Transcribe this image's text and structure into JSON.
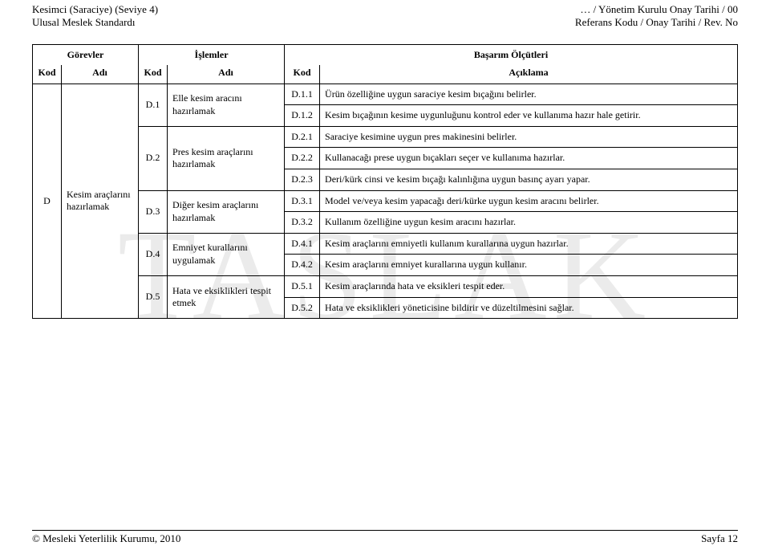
{
  "header": {
    "left_line1": "Kesimci (Saraciye) (Seviye 4)",
    "left_line2": "Ulusal Meslek Standardı",
    "right_line1": "… / Yönetim Kurulu Onay Tarihi  / 00",
    "right_line2": "Referans Kodu / Onay Tarihi / Rev. No"
  },
  "watermark": "TASLAK",
  "columns": {
    "gorevler": "Görevler",
    "islemler": "İşlemler",
    "basarim": "Başarım Ölçütleri",
    "kod": "Kod",
    "adi": "Adı",
    "aciklama": "Açıklama"
  },
  "task": {
    "kod": "D",
    "adi": "Kesim araçlarını hazırlamak"
  },
  "ops": [
    {
      "kod": "D.1",
      "adi": "Elle kesim aracını hazırlamak"
    },
    {
      "kod": "D.2",
      "adi": "Pres kesim araçlarını hazırlamak"
    },
    {
      "kod": "D.3",
      "adi": "Diğer kesim araçlarını hazırlamak"
    },
    {
      "kod": "D.4",
      "adi": "Emniyet kurallarını uygulamak"
    },
    {
      "kod": "D.5",
      "adi": "Hata ve eksiklikleri tespit etmek"
    }
  ],
  "crit": {
    "d11": {
      "k": "D.1.1",
      "t": "Ürün özelliğine uygun saraciye kesim bıçağını belirler."
    },
    "d12": {
      "k": "D.1.2",
      "t": "Kesim bıçağının kesime uygunluğunu kontrol eder ve kullanıma hazır hale getirir."
    },
    "d21": {
      "k": "D.2.1",
      "t": "Saraciye kesimine uygun pres makinesini belirler."
    },
    "d22": {
      "k": "D.2.2",
      "t": "Kullanacağı prese uygun bıçakları seçer ve kullanıma hazırlar."
    },
    "d23": {
      "k": "D.2.3",
      "t": "Deri/kürk cinsi ve kesim bıçağı kalınlığına uygun basınç ayarı yapar."
    },
    "d31": {
      "k": "D.3.1",
      "t": "Model ve/veya kesim yapacağı deri/kürke uygun kesim aracını belirler."
    },
    "d32": {
      "k": "D.3.2",
      "t": "Kullanım özelliğine uygun kesim aracını hazırlar."
    },
    "d41": {
      "k": "D.4.1",
      "t": "Kesim araçlarını emniyetli kullanım kurallarına uygun hazırlar."
    },
    "d42": {
      "k": "D.4.2",
      "t": "Kesim araçlarını emniyet kurallarına uygun kullanır."
    },
    "d51": {
      "k": "D.5.1",
      "t": "Kesim araçlarında hata ve eksikleri tespit eder."
    },
    "d52": {
      "k": "D.5.2",
      "t": "Hata ve eksiklikleri yöneticisine bildirir ve düzeltilmesini sağlar."
    }
  },
  "footer": {
    "left": "© Mesleki Yeterlilik Kurumu, 2010",
    "right": "Sayfa 12"
  }
}
